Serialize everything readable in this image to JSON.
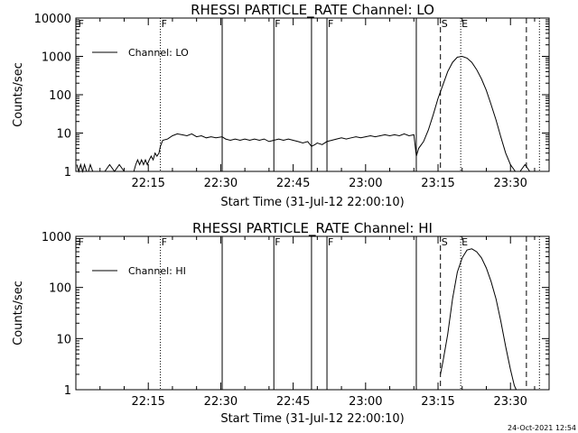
{
  "footer_timestamp": "24-Oct-2021 12:54",
  "chart_data": [
    {
      "type": "line",
      "title": "RHESSI PARTICLE_RATE Channel: LO",
      "xlabel": "Start Time (31-Jul-12 22:00:10)",
      "ylabel": "Counts/sec",
      "yscale": "log",
      "xlim_minutes": [
        0,
        98
      ],
      "ylim": [
        1,
        10000
      ],
      "x_tick_labels": [
        "22:15",
        "22:30",
        "22:45",
        "23:00",
        "23:15",
        "23:30"
      ],
      "x_tick_minutes": [
        15,
        30,
        45,
        60,
        75,
        90
      ],
      "y_tick_labels": [
        "1",
        "10",
        "100",
        "1000",
        "10000"
      ],
      "y_tick_values": [
        1,
        10,
        100,
        1000,
        10000
      ],
      "legend_label": "Channel: LO",
      "legend_position": "top-left",
      "markers": [
        {
          "minute": 0.3,
          "label": "F",
          "style": "none"
        },
        {
          "minute": 17.5,
          "label": "F",
          "style": "dotted"
        },
        {
          "minute": 30.3,
          "label": "",
          "style": "solid"
        },
        {
          "minute": 41.0,
          "label": "F",
          "style": "solid"
        },
        {
          "minute": 48.8,
          "label": "",
          "style": "solid"
        },
        {
          "minute": 52.0,
          "label": "F",
          "style": "solid"
        },
        {
          "minute": 70.5,
          "label": "",
          "style": "solid"
        },
        {
          "minute": 75.5,
          "label": "S",
          "style": "dashed"
        },
        {
          "minute": 79.7,
          "label": "E",
          "style": "dotted"
        },
        {
          "minute": 93.3,
          "label": "",
          "style": "dashed"
        },
        {
          "minute": 96.0,
          "label": "",
          "style": "dotted"
        }
      ],
      "series": [
        {
          "x_minutes": [
            0.2,
            0.6,
            1.0,
            1.4,
            1.8,
            2.2,
            2.6,
            3.0,
            3.5,
            4.0,
            5.0,
            6.0,
            7.0,
            8.0,
            9.0,
            10.0,
            11.0,
            12.0,
            12.4,
            12.8,
            13.2,
            13.6,
            14.0,
            14.4,
            14.8,
            15.2,
            15.6,
            16.0,
            16.4,
            16.8,
            17.2,
            17.5,
            18.0,
            19.0,
            20.0,
            21.0,
            22.0,
            23.0,
            24.0,
            25.0,
            26.0,
            27.0,
            28.0,
            29.0,
            30.3,
            31.0,
            32.0,
            33.0,
            34.0,
            35.0,
            36.0,
            37.0,
            38.0,
            39.0,
            40.0,
            41.0,
            42.0,
            43.0,
            44.0,
            45.0,
            46.0,
            47.0,
            48.0,
            48.8,
            49.5,
            50.0,
            51.0,
            52.0,
            53.0,
            54.0,
            55.0,
            56.0,
            57.0,
            58.0,
            59.0,
            60.0,
            61.0,
            62.0,
            63.0,
            64.0,
            65.0,
            66.0,
            67.0,
            68.0,
            69.0,
            70.0,
            70.5,
            71.0,
            72.0,
            73.0,
            74.0,
            75.0,
            76.0,
            77.0,
            78.0,
            79.0,
            80.0,
            81.0,
            82.0,
            83.0,
            84.0,
            85.0,
            86.0,
            87.0,
            88.0,
            89.0,
            90.0,
            91.0,
            92.0,
            93.0,
            94.0,
            95.0
          ],
          "y": [
            1.5,
            1.0,
            1.5,
            1.0,
            1.5,
            1.0,
            1.0,
            1.5,
            1.0,
            1.0,
            1.0,
            1.0,
            1.5,
            1.0,
            1.5,
            1.0,
            1.0,
            1.0,
            1.5,
            2.0,
            1.5,
            2.0,
            1.5,
            2.0,
            1.5,
            2.0,
            2.5,
            2.0,
            3.0,
            2.5,
            3.0,
            4.5,
            6.5,
            7.0,
            8.5,
            9.5,
            9.0,
            8.5,
            9.5,
            8.0,
            8.5,
            7.5,
            8.0,
            7.5,
            8.0,
            7.0,
            6.5,
            7.0,
            6.5,
            7.0,
            6.5,
            7.0,
            6.5,
            7.0,
            6.0,
            6.5,
            7.0,
            6.5,
            7.0,
            6.5,
            6.0,
            5.5,
            6.0,
            4.5,
            5.0,
            5.5,
            5.0,
            6.0,
            6.5,
            7.0,
            7.5,
            7.0,
            7.5,
            8.0,
            7.5,
            8.0,
            8.5,
            8.0,
            8.5,
            9.0,
            8.5,
            9.0,
            8.5,
            9.5,
            8.5,
            9.0,
            2.5,
            4.0,
            6.0,
            12.0,
            30.0,
            80.0,
            180.0,
            400.0,
            700.0,
            950.0,
            1000.0,
            900.0,
            700.0,
            450.0,
            260.0,
            130.0,
            55.0,
            22.0,
            8.0,
            3.0,
            1.5,
            1.0,
            1.0,
            1.5,
            1.0,
            1.0
          ]
        }
      ]
    },
    {
      "type": "line",
      "title": "RHESSI PARTICLE_RATE Channel: HI",
      "xlabel": "Start Time (31-Jul-12 22:00:10)",
      "ylabel": "Counts/sec",
      "yscale": "log",
      "xlim_minutes": [
        0,
        98
      ],
      "ylim": [
        1,
        1000
      ],
      "x_tick_labels": [
        "22:15",
        "22:30",
        "22:45",
        "23:00",
        "23:15",
        "23:30"
      ],
      "x_tick_minutes": [
        15,
        30,
        45,
        60,
        75,
        90
      ],
      "y_tick_labels": [
        "1",
        "10",
        "100",
        "1000"
      ],
      "y_tick_values": [
        1,
        10,
        100,
        1000
      ],
      "legend_label": "Channel: HI",
      "legend_position": "top-left",
      "markers": [
        {
          "minute": 0.3,
          "label": "F",
          "style": "none"
        },
        {
          "minute": 17.5,
          "label": "F",
          "style": "dotted"
        },
        {
          "minute": 30.3,
          "label": "",
          "style": "solid"
        },
        {
          "minute": 41.0,
          "label": "F",
          "style": "solid"
        },
        {
          "minute": 48.8,
          "label": "",
          "style": "solid"
        },
        {
          "minute": 52.0,
          "label": "F",
          "style": "solid"
        },
        {
          "minute": 70.5,
          "label": "",
          "style": "solid"
        },
        {
          "minute": 75.5,
          "label": "S",
          "style": "dashed"
        },
        {
          "minute": 79.7,
          "label": "E",
          "style": "dotted"
        },
        {
          "minute": 93.3,
          "label": "",
          "style": "dashed"
        },
        {
          "minute": 96.0,
          "label": "",
          "style": "dotted"
        }
      ],
      "series": [
        {
          "x_minutes": [
            75.5,
            76.0,
            77.0,
            78.0,
            79.0,
            80.0,
            81.0,
            82.0,
            83.0,
            84.0,
            85.0,
            86.0,
            87.0,
            88.0,
            89.0,
            90.0,
            90.8,
            91.2
          ],
          "y": [
            2.0,
            3.5,
            12.0,
            60.0,
            200.0,
            380.0,
            540.0,
            570.0,
            500.0,
            380.0,
            240.0,
            130.0,
            60.0,
            22.0,
            7.0,
            2.5,
            1.2,
            1.0
          ]
        }
      ]
    }
  ]
}
